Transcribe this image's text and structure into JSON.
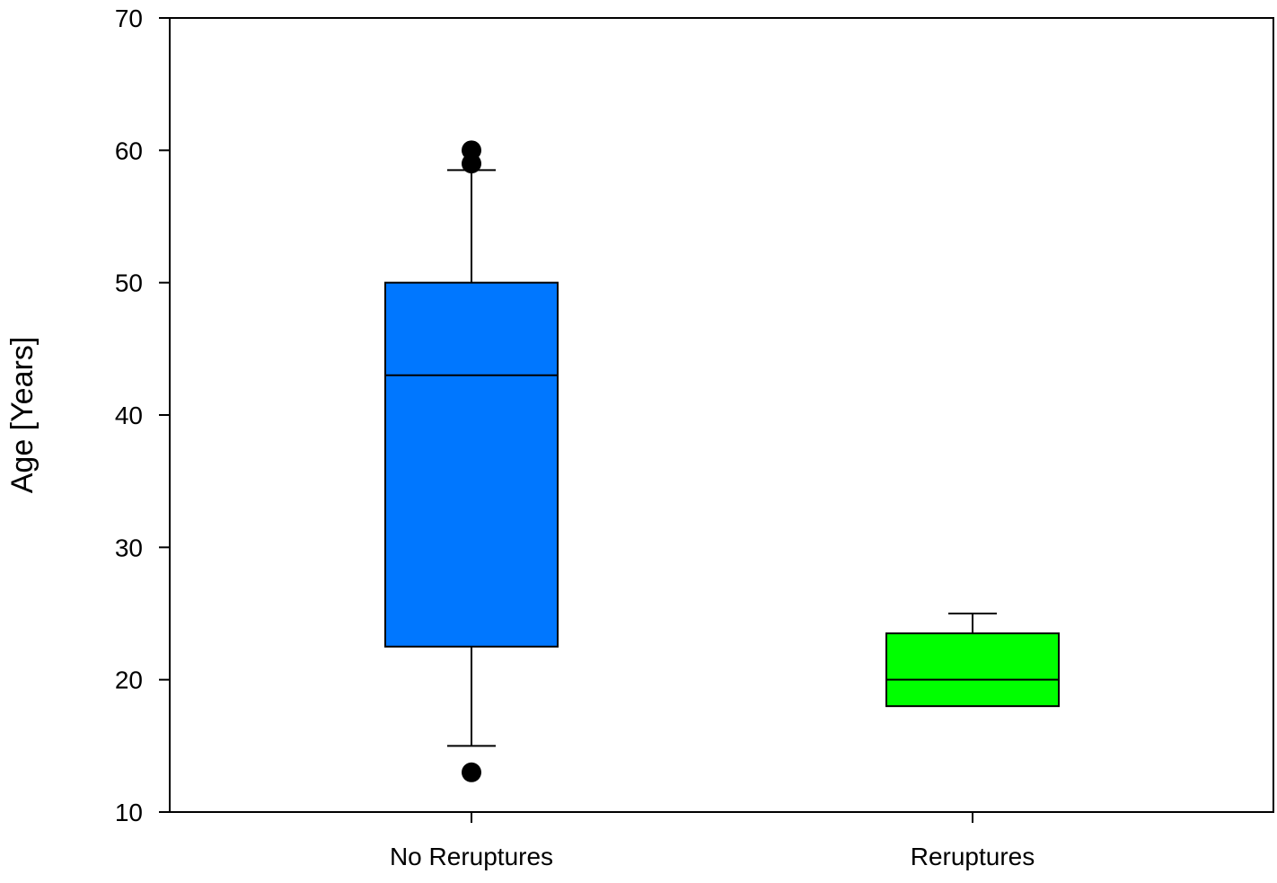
{
  "chart_data": {
    "type": "box",
    "title": "",
    "xlabel": "",
    "ylabel": "Age [Years]",
    "ylim": [
      10,
      70
    ],
    "yticks": [
      10,
      20,
      30,
      40,
      50,
      60,
      70
    ],
    "grid": false,
    "legend": "none",
    "categories": [
      "No Reruptures",
      "Reruptures"
    ],
    "boxes": [
      {
        "category": "No Reruptures",
        "color": "#0077ff",
        "whisker_low": 15,
        "q1": 22.5,
        "median": 43,
        "q3": 50,
        "whisker_high": 58.5,
        "outliers": [
          13,
          59,
          60
        ]
      },
      {
        "category": "Reruptures",
        "color": "#00ff00",
        "whisker_low": 18,
        "q1": 18,
        "median": 20,
        "q3": 23.5,
        "whisker_high": 25,
        "outliers": []
      }
    ]
  }
}
